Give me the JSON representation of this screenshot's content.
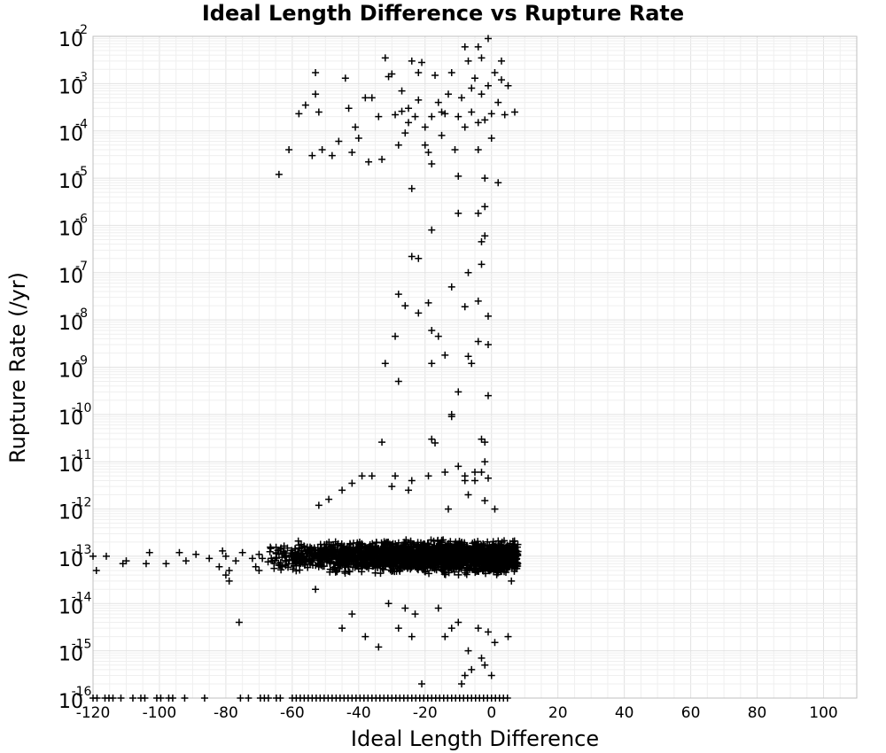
{
  "chart_data": {
    "type": "scatter",
    "title": "Ideal Length Difference vs Rupture Rate",
    "xlabel": "Ideal Length Difference",
    "ylabel": "Rupture Rate (/yr)",
    "xlim": [
      -120,
      110
    ],
    "ylim": [
      1e-16,
      0.01
    ],
    "y_scale": "log",
    "grid": true,
    "marker": "plus",
    "x_ticks": [
      -120,
      -100,
      -80,
      -60,
      -40,
      -20,
      0,
      20,
      40,
      60,
      80,
      100
    ],
    "y_ticks": [
      {
        "base": "10",
        "exp": "-2",
        "value": 0.01
      },
      {
        "base": "10",
        "exp": "-3",
        "value": 0.001
      },
      {
        "base": "10",
        "exp": "-4",
        "value": 0.0001
      },
      {
        "base": "10",
        "exp": "-5",
        "value": 1e-05
      },
      {
        "base": "10",
        "exp": "-6",
        "value": 1e-06
      },
      {
        "base": "10",
        "exp": "-7",
        "value": 1e-07
      },
      {
        "base": "10",
        "exp": "-8",
        "value": 1e-08
      },
      {
        "base": "10",
        "exp": "-9",
        "value": 1e-09
      },
      {
        "base": "10",
        "exp": "-10",
        "value": 1e-10
      },
      {
        "base": "10",
        "exp": "-11",
        "value": 1e-11
      },
      {
        "base": "10",
        "exp": "-12",
        "value": 1e-12
      },
      {
        "base": "10",
        "exp": "-13",
        "value": 1e-13
      },
      {
        "base": "10",
        "exp": "-14",
        "value": 1e-14
      },
      {
        "base": "10",
        "exp": "-15",
        "value": 1e-15
      },
      {
        "base": "10",
        "exp": "-16",
        "value": 1e-16
      }
    ],
    "series": [
      {
        "points": [
          [
            -64,
            1.2e-05
          ],
          [
            -61,
            4e-05
          ],
          [
            -58,
            0.00023
          ],
          [
            -56,
            0.00035
          ],
          [
            -54,
            3e-05
          ],
          [
            -53,
            0.0017
          ],
          [
            -53,
            0.0006
          ],
          [
            -52,
            0.00025
          ],
          [
            -51,
            4e-05
          ],
          [
            -48,
            3e-05
          ],
          [
            -46,
            6e-05
          ],
          [
            -44,
            0.0013
          ],
          [
            -43,
            0.0003
          ],
          [
            -42,
            3.5e-05
          ],
          [
            -41,
            0.00012
          ],
          [
            -40,
            7e-05
          ],
          [
            -38,
            0.0005
          ],
          [
            -37,
            2.2e-05
          ],
          [
            -36,
            0.0005
          ],
          [
            -34,
            0.0002
          ],
          [
            -33,
            2.5e-05
          ],
          [
            -32,
            0.0035
          ],
          [
            -31,
            0.0014
          ],
          [
            -30,
            0.0016
          ],
          [
            -29,
            0.00022
          ],
          [
            -28,
            5e-05
          ],
          [
            -27,
            0.00026
          ],
          [
            -27,
            0.0007
          ],
          [
            -26,
            9e-05
          ],
          [
            -25,
            0.0003
          ],
          [
            -25,
            0.00015
          ],
          [
            -24,
            0.003
          ],
          [
            -24,
            6e-06
          ],
          [
            -23,
            0.0002
          ],
          [
            -22,
            0.0017
          ],
          [
            -22,
            0.00045
          ],
          [
            -21,
            0.0028
          ],
          [
            -20,
            0.00012
          ],
          [
            -19,
            3.5e-05
          ],
          [
            -18,
            0.0002
          ],
          [
            -18,
            2e-05
          ],
          [
            -17,
            0.0015
          ],
          [
            -16,
            0.0004
          ],
          [
            -15,
            8e-05
          ],
          [
            -14,
            0.00023
          ],
          [
            -13,
            0.0006
          ],
          [
            -12,
            0.0017
          ],
          [
            -11,
            4e-05
          ],
          [
            -10,
            0.0002
          ],
          [
            -10,
            1.1e-05
          ],
          [
            -9,
            0.0005
          ],
          [
            -8,
            0.00012
          ],
          [
            -8,
            0.006
          ],
          [
            -7,
            0.003
          ],
          [
            -6,
            0.0008
          ],
          [
            -6,
            0.00025
          ],
          [
            -5,
            0.0013
          ],
          [
            -4,
            0.00015
          ],
          [
            -4,
            4e-05
          ],
          [
            -3,
            0.0035
          ],
          [
            -3,
            0.0006
          ],
          [
            -2,
            0.00017
          ],
          [
            -2,
            1e-05
          ],
          [
            -1,
            0.0009
          ],
          [
            0,
            0.00023
          ],
          [
            0,
            7e-05
          ],
          [
            1,
            0.0017
          ],
          [
            2,
            0.0004
          ],
          [
            2,
            8e-06
          ],
          [
            3,
            0.003
          ],
          [
            3,
            0.0012
          ],
          [
            4,
            0.00022
          ],
          [
            5,
            0.0009
          ],
          [
            7,
            0.00025
          ],
          [
            -1,
            0.009
          ],
          [
            -4,
            0.006
          ],
          [
            -15,
            0.00025
          ],
          [
            -20,
            5e-05
          ],
          [
            -2,
            2.5e-06
          ],
          [
            -4,
            1.8e-06
          ],
          [
            -10,
            1.8e-06
          ],
          [
            -18,
            8e-07
          ],
          [
            -2,
            6e-07
          ],
          [
            -3,
            4.5e-07
          ],
          [
            -22,
            2e-07
          ],
          [
            -24,
            2.2e-07
          ],
          [
            -3,
            1.5e-07
          ],
          [
            -7,
            1e-07
          ],
          [
            -12,
            5e-08
          ],
          [
            -28,
            3.5e-08
          ],
          [
            -26,
            2e-08
          ],
          [
            -4,
            2.5e-08
          ],
          [
            -19,
            2.3e-08
          ],
          [
            -22,
            1.4e-08
          ],
          [
            -8,
            1.9e-08
          ],
          [
            -1,
            1.2e-08
          ],
          [
            -18,
            6e-09
          ],
          [
            -16,
            4.5e-09
          ],
          [
            -29,
            4.5e-09
          ],
          [
            -4,
            3.5e-09
          ],
          [
            -1,
            3e-09
          ],
          [
            -18,
            1.2e-09
          ],
          [
            -6,
            1.2e-09
          ],
          [
            -32,
            1.2e-09
          ],
          [
            -7,
            1.7e-09
          ],
          [
            -14,
            1.8e-09
          ],
          [
            -28,
            5e-10
          ],
          [
            -10,
            3e-10
          ],
          [
            -1,
            2.5e-10
          ],
          [
            -12,
            1e-10
          ],
          [
            -12,
            9e-11
          ],
          [
            -3,
            3e-11
          ],
          [
            -2,
            2.6e-11
          ],
          [
            -18,
            3e-11
          ],
          [
            -17,
            2.5e-11
          ],
          [
            -33,
            2.6e-11
          ],
          [
            -2,
            1e-11
          ],
          [
            -3,
            6e-12
          ],
          [
            -1,
            4.5e-12
          ],
          [
            -5,
            4e-12
          ],
          [
            -8,
            5e-12
          ],
          [
            -14,
            6e-12
          ],
          [
            -19,
            5e-12
          ],
          [
            -24,
            4e-12
          ],
          [
            -29,
            5e-12
          ],
          [
            -36,
            5e-12
          ],
          [
            -39,
            5e-12
          ],
          [
            -42,
            3.5e-12
          ],
          [
            -45,
            2.5e-12
          ],
          [
            -49,
            1.6e-12
          ],
          [
            -52,
            1.2e-12
          ],
          [
            -13,
            1e-12
          ],
          [
            -2,
            1.5e-12
          ],
          [
            -7,
            2e-12
          ],
          [
            1,
            1e-12
          ],
          [
            -25,
            2.5e-12
          ],
          [
            -8,
            4e-12
          ],
          [
            -5,
            6e-12
          ],
          [
            -10,
            8e-12
          ],
          [
            -30,
            3e-12
          ]
        ]
      }
    ],
    "dense_band": {
      "x_range": [
        -68,
        8
      ],
      "center": 1e-13,
      "spread_decades": [
        -0.45,
        0.4
      ]
    },
    "sparse_tail": [
      [
        -120,
        1e-13
      ],
      [
        -119,
        5e-14
      ],
      [
        -116,
        1e-13
      ],
      [
        -111,
        7e-14
      ],
      [
        -110,
        8e-14
      ],
      [
        -104,
        7e-14
      ],
      [
        -103,
        1.2e-13
      ],
      [
        -98,
        7e-14
      ],
      [
        -94,
        1.2e-13
      ],
      [
        -92,
        8e-14
      ],
      [
        -89,
        1.1e-13
      ],
      [
        -85,
        9e-14
      ],
      [
        -82,
        6e-14
      ],
      [
        -81,
        1.3e-13
      ],
      [
        -80,
        1e-13
      ],
      [
        -79,
        5e-14
      ],
      [
        -77,
        8e-14
      ],
      [
        -75,
        1.2e-13
      ],
      [
        -72,
        9e-14
      ],
      [
        -71,
        6e-14
      ],
      [
        -70,
        1.1e-13
      ],
      [
        -69,
        9e-14
      ],
      [
        -66,
        8e-14
      ],
      [
        -64,
        1.1e-13
      ],
      [
        -63,
        6e-14
      ],
      [
        -80,
        4e-14
      ],
      [
        -79,
        3e-14
      ],
      [
        -70,
        5e-14
      ],
      [
        -76,
        4e-15
      ],
      [
        -53,
        2e-14
      ],
      [
        -45,
        3e-15
      ],
      [
        -42,
        6e-15
      ],
      [
        -38,
        2e-15
      ],
      [
        -34,
        1.2e-15
      ],
      [
        -31,
        1e-14
      ],
      [
        -28,
        3e-15
      ],
      [
        -26,
        8e-15
      ],
      [
        -24,
        2e-15
      ],
      [
        -23,
        6e-15
      ],
      [
        -21,
        2e-16
      ],
      [
        -16,
        8e-15
      ],
      [
        -14,
        2e-15
      ],
      [
        -12,
        3e-15
      ],
      [
        -10,
        4e-15
      ],
      [
        -9,
        2e-16
      ],
      [
        -8,
        3e-16
      ],
      [
        -7,
        1e-15
      ],
      [
        -6,
        4e-16
      ],
      [
        -4,
        3e-15
      ],
      [
        -3,
        7e-16
      ],
      [
        -2,
        5e-16
      ],
      [
        -1,
        2.5e-15
      ],
      [
        0,
        3e-16
      ],
      [
        1,
        1.5e-15
      ],
      [
        5,
        2e-15
      ],
      [
        6,
        3e-14
      ]
    ],
    "floor_x_range": [
      -120,
      5
    ],
    "floor_value": 1e-16
  }
}
